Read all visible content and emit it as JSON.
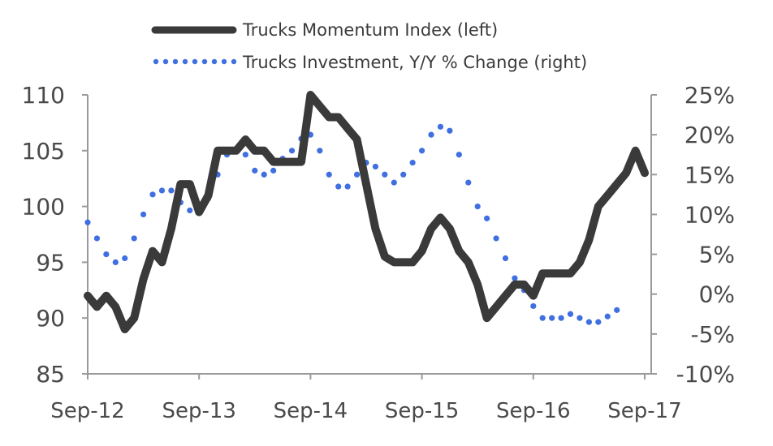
{
  "chart_data": {
    "type": "line",
    "legend": {
      "placement": "top-center",
      "entries": [
        {
          "label": "Trucks Momentum Index (left)",
          "style": "solid",
          "color": "#3a3a3a"
        },
        {
          "label": "Trucks Investment, Y/Y % Change (right)",
          "style": "dotted",
          "color": "#3f6fe0"
        }
      ]
    },
    "x_tick_labels": [
      "Sep-12",
      "Sep-13",
      "Sep-14",
      "Sep-15",
      "Sep-16",
      "Sep-17"
    ],
    "x_range": [
      "2012-09",
      "2017-09"
    ],
    "y_left": {
      "range": [
        85,
        110
      ],
      "ticks": [
        "85",
        "90",
        "95",
        "100",
        "105",
        "110"
      ]
    },
    "y_right": {
      "range": [
        -10,
        25
      ],
      "unit": "%",
      "ticks": [
        "-10%",
        "-5%",
        "0%",
        "5%",
        "10%",
        "15%",
        "20%",
        "25%"
      ]
    },
    "grid": false,
    "series": [
      {
        "name": "Trucks Momentum Index (left)",
        "axis": "left",
        "color": "#3a3a3a",
        "style": "solid",
        "points": [
          [
            "2012-09",
            92.0
          ],
          [
            "2012-10",
            91.0
          ],
          [
            "2012-11",
            92.0
          ],
          [
            "2012-12",
            91.0
          ],
          [
            "2013-01",
            89.0
          ],
          [
            "2013-02",
            90.0
          ],
          [
            "2013-03",
            93.5
          ],
          [
            "2013-04",
            96.0
          ],
          [
            "2013-05",
            95.0
          ],
          [
            "2013-06",
            98.0
          ],
          [
            "2013-07",
            102.0
          ],
          [
            "2013-08",
            102.0
          ],
          [
            "2013-09",
            99.5
          ],
          [
            "2013-10",
            101.0
          ],
          [
            "2013-11",
            105.0
          ],
          [
            "2013-12",
            105.0
          ],
          [
            "2014-01",
            105.0
          ],
          [
            "2014-02",
            106.0
          ],
          [
            "2014-03",
            105.0
          ],
          [
            "2014-04",
            105.0
          ],
          [
            "2014-05",
            104.0
          ],
          [
            "2014-06",
            104.0
          ],
          [
            "2014-07",
            104.0
          ],
          [
            "2014-08",
            104.0
          ],
          [
            "2014-09",
            110.0
          ],
          [
            "2014-10",
            109.0
          ],
          [
            "2014-11",
            108.0
          ],
          [
            "2014-12",
            108.0
          ],
          [
            "2015-01",
            107.0
          ],
          [
            "2015-02",
            106.0
          ],
          [
            "2015-03",
            102.0
          ],
          [
            "2015-04",
            98.0
          ],
          [
            "2015-05",
            95.5
          ],
          [
            "2015-06",
            95.0
          ],
          [
            "2015-07",
            95.0
          ],
          [
            "2015-08",
            95.0
          ],
          [
            "2015-09",
            96.0
          ],
          [
            "2015-10",
            98.0
          ],
          [
            "2015-11",
            99.0
          ],
          [
            "2015-12",
            98.0
          ],
          [
            "2016-01",
            96.0
          ],
          [
            "2016-02",
            95.0
          ],
          [
            "2016-03",
            93.0
          ],
          [
            "2016-04",
            90.0
          ],
          [
            "2016-05",
            91.0
          ],
          [
            "2016-06",
            92.0
          ],
          [
            "2016-07",
            93.0
          ],
          [
            "2016-08",
            93.0
          ],
          [
            "2016-09",
            92.0
          ],
          [
            "2016-10",
            94.0
          ],
          [
            "2016-11",
            94.0
          ],
          [
            "2016-12",
            94.0
          ],
          [
            "2017-01",
            94.0
          ],
          [
            "2017-02",
            95.0
          ],
          [
            "2017-03",
            97.0
          ],
          [
            "2017-04",
            100.0
          ],
          [
            "2017-05",
            101.0
          ],
          [
            "2017-06",
            102.0
          ],
          [
            "2017-07",
            103.0
          ],
          [
            "2017-08",
            105.0
          ],
          [
            "2017-09",
            103.0
          ]
        ]
      },
      {
        "name": "Trucks Investment, Y/Y % Change (right)",
        "axis": "right",
        "color": "#3f6fe0",
        "style": "dotted",
        "points": [
          [
            "2012-09",
            9.0
          ],
          [
            "2012-10",
            7.0
          ],
          [
            "2012-11",
            5.0
          ],
          [
            "2012-12",
            4.0
          ],
          [
            "2013-01",
            4.5
          ],
          [
            "2013-02",
            7.0
          ],
          [
            "2013-03",
            10.0
          ],
          [
            "2013-04",
            12.5
          ],
          [
            "2013-05",
            13.0
          ],
          [
            "2013-06",
            13.0
          ],
          [
            "2013-07",
            11.5
          ],
          [
            "2013-08",
            10.5
          ],
          [
            "2013-09",
            10.5
          ],
          [
            "2013-10",
            12.0
          ],
          [
            "2013-11",
            15.0
          ],
          [
            "2013-12",
            17.5
          ],
          [
            "2014-01",
            18.0
          ],
          [
            "2014-02",
            17.5
          ],
          [
            "2014-03",
            15.5
          ],
          [
            "2014-04",
            15.0
          ],
          [
            "2014-05",
            15.5
          ],
          [
            "2014-06",
            17.0
          ],
          [
            "2014-07",
            18.0
          ],
          [
            "2014-08",
            19.5
          ],
          [
            "2014-09",
            20.0
          ],
          [
            "2014-10",
            18.0
          ],
          [
            "2014-11",
            15.0
          ],
          [
            "2014-12",
            13.5
          ],
          [
            "2015-01",
            13.5
          ],
          [
            "2015-02",
            15.0
          ],
          [
            "2015-03",
            16.5
          ],
          [
            "2015-04",
            16.0
          ],
          [
            "2015-05",
            15.0
          ],
          [
            "2015-06",
            14.0
          ],
          [
            "2015-07",
            15.0
          ],
          [
            "2015-08",
            16.5
          ],
          [
            "2015-09",
            18.0
          ],
          [
            "2015-10",
            20.0
          ],
          [
            "2015-11",
            21.0
          ],
          [
            "2015-12",
            20.5
          ],
          [
            "2016-01",
            17.5
          ],
          [
            "2016-02",
            14.0
          ],
          [
            "2016-03",
            11.0
          ],
          [
            "2016-04",
            9.5
          ],
          [
            "2016-05",
            7.0
          ],
          [
            "2016-06",
            4.5
          ],
          [
            "2016-07",
            2.0
          ],
          [
            "2016-08",
            0.5
          ],
          [
            "2016-09",
            -1.5
          ],
          [
            "2016-10",
            -3.0
          ],
          [
            "2016-11",
            -3.0
          ],
          [
            "2016-12",
            -3.0
          ],
          [
            "2017-01",
            -2.5
          ],
          [
            "2017-02",
            -3.0
          ],
          [
            "2017-03",
            -3.5
          ],
          [
            "2017-04",
            -3.5
          ],
          [
            "2017-05",
            -2.8
          ],
          [
            "2017-06",
            -2.0
          ]
        ]
      }
    ]
  }
}
